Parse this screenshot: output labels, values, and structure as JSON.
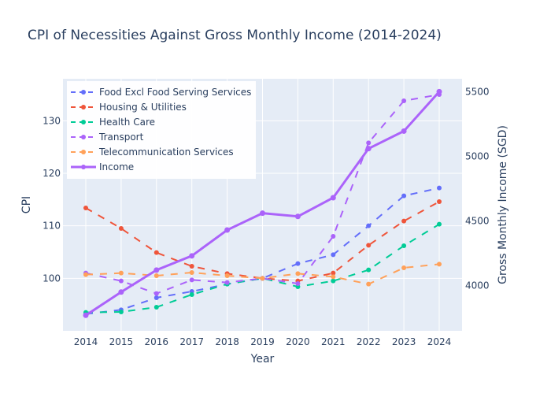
{
  "chart_data": {
    "type": "line",
    "title": "CPI of Necessities Against Gross Monthly Income (2014-2024)",
    "xlabel": "Year",
    "ylabel": "CPI",
    "y2label": "Gross Monthly Income (SGD)",
    "x": [
      2014,
      2015,
      2016,
      2017,
      2018,
      2019,
      2020,
      2021,
      2022,
      2023,
      2024
    ],
    "ylim": [
      90,
      138
    ],
    "y_ticks": [
      100,
      110,
      120,
      130
    ],
    "y2lim": [
      3650,
      5600
    ],
    "y2_ticks": [
      4000,
      4500,
      5000,
      5500
    ],
    "grid": true,
    "legend_position": "top-left",
    "series": [
      {
        "name": "Food Excl Food Serving Services",
        "axis": "left",
        "color": "#636efa",
        "dash": "dash",
        "values": [
          93.2,
          94.0,
          96.3,
          97.5,
          98.9,
          100.0,
          102.8,
          104.5,
          110.0,
          115.7,
          117.2
        ]
      },
      {
        "name": "Housing & Utilities",
        "axis": "left",
        "color": "#ef553b",
        "dash": "dash",
        "values": [
          113.4,
          109.5,
          104.9,
          102.3,
          100.9,
          100.0,
          99.5,
          101.0,
          106.3,
          110.9,
          114.6
        ]
      },
      {
        "name": "Health Care",
        "axis": "left",
        "color": "#00cc96",
        "dash": "dash",
        "values": [
          93.5,
          93.6,
          94.5,
          96.9,
          98.9,
          100.0,
          98.4,
          99.5,
          101.6,
          106.2,
          110.3
        ]
      },
      {
        "name": "Transport",
        "axis": "left",
        "color": "#ab63fa",
        "dash": "dash",
        "values": [
          101.0,
          99.5,
          97.1,
          99.7,
          99.2,
          100.0,
          99.0,
          108.0,
          125.8,
          133.8,
          135.0
        ]
      },
      {
        "name": "Telecommunication Services",
        "axis": "left",
        "color": "#ffa15a",
        "dash": "dash",
        "values": [
          100.7,
          101.0,
          100.5,
          101.1,
          100.5,
          100.0,
          100.9,
          100.3,
          98.9,
          102.0,
          102.7
        ]
      },
      {
        "name": "Income",
        "axis": "right",
        "color": "#ab63fa",
        "dash": "solid",
        "values": [
          3770,
          3950,
          4120,
          4230,
          4430,
          4560,
          4535,
          4680,
          5060,
          5195,
          5500
        ]
      }
    ]
  }
}
